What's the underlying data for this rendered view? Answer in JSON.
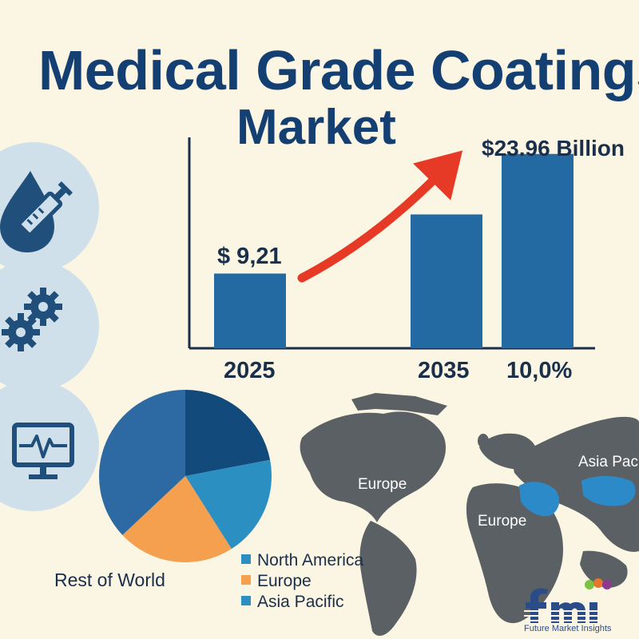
{
  "header": {
    "title_line_1": "Medical Grade Coatings",
    "title_line_2": "Market"
  },
  "icons": [
    {
      "name": "syringe-drop-icon"
    },
    {
      "name": "gears-icon"
    },
    {
      "name": "heart-monitor-icon"
    }
  ],
  "chart_data": [
    {
      "type": "bar",
      "categories": [
        "2025",
        "2035"
      ],
      "values": [
        9.21,
        23.96
      ],
      "intermediate_bar": {
        "value": 16.5
      },
      "ylim": [
        0,
        26
      ],
      "value_labels": [
        "$ 9,21",
        "$23.96 Billion"
      ],
      "cagr_label": "10,0%",
      "trend_arrow": true,
      "bar_color": "#236aa2",
      "arrow_color": "#e63a26"
    },
    {
      "type": "pie",
      "slices": [
        {
          "value": 22,
          "color": "#124a7c"
        },
        {
          "value": 19,
          "color": "#2c8fc2"
        },
        {
          "value": 22,
          "color": "#f5a04f"
        },
        {
          "value": 37,
          "color": "#2d6aa3"
        }
      ],
      "legend": [
        {
          "label": "North America",
          "color": "#2c8fc2"
        },
        {
          "label": "Europe",
          "color": "#f5a04f"
        },
        {
          "label": "Asia Pacific",
          "color": "#2c8fc2"
        }
      ],
      "annotation": "Rest of World"
    }
  ],
  "map": {
    "labels": [
      "Europe",
      "Europe",
      "Asia Paci"
    ],
    "land_color": "#5a6064",
    "highlight_color": "#2d8ac8"
  },
  "logo": {
    "text": "fmi",
    "tagline": "Future Market Insights"
  }
}
